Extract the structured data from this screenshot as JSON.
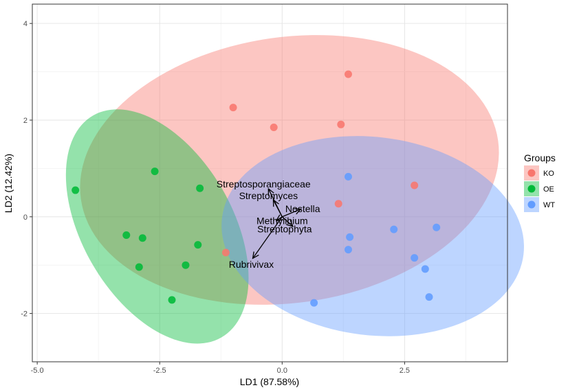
{
  "chart_data": {
    "type": "scatter",
    "xlabel": "LD1 (87.58%)",
    "ylabel": "LD2 (12.42%)",
    "xlim": [
      -5.1,
      4.6
    ],
    "ylim": [
      -3.0,
      4.4
    ],
    "x_ticks": [
      -5.0,
      -2.5,
      0.0,
      2.5
    ],
    "x_tick_labels": [
      "-5.0",
      "-2.5",
      "0.0",
      "2.5"
    ],
    "y_ticks": [
      4,
      2,
      0,
      -2
    ],
    "y_tick_labels": [
      "4",
      "2",
      "0",
      "-2"
    ],
    "grid": true,
    "legend": {
      "title": "Groups",
      "position": "right"
    },
    "series": [
      {
        "name": "KO",
        "color": "#F8766D",
        "points": [
          {
            "x": 1.35,
            "y": 2.95
          },
          {
            "x": -1.0,
            "y": 2.26
          },
          {
            "x": -0.17,
            "y": 1.85
          },
          {
            "x": 1.2,
            "y": 1.91
          },
          {
            "x": 2.7,
            "y": 0.65
          },
          {
            "x": 1.15,
            "y": 0.27
          },
          {
            "x": -1.15,
            "y": -0.74
          }
        ],
        "ellipse": {
          "cx": 0.15,
          "cy": 0.97,
          "rx": 4.3,
          "ry": 2.75,
          "angle_deg": 8
        }
      },
      {
        "name": "OE",
        "color": "#00BA38",
        "points": [
          {
            "x": -4.22,
            "y": 0.55
          },
          {
            "x": -2.6,
            "y": 0.94
          },
          {
            "x": -1.68,
            "y": 0.59
          },
          {
            "x": -3.18,
            "y": -0.38
          },
          {
            "x": -2.85,
            "y": -0.44
          },
          {
            "x": -1.72,
            "y": -0.58
          },
          {
            "x": -2.92,
            "y": -1.04
          },
          {
            "x": -1.97,
            "y": -1.0
          },
          {
            "x": -2.25,
            "y": -1.72
          }
        ],
        "ellipse": {
          "cx": -2.55,
          "cy": -0.2,
          "rx": 2.62,
          "ry": 1.55,
          "angle_deg": -60
        }
      },
      {
        "name": "WT",
        "color": "#619CFF",
        "points": [
          {
            "x": 1.35,
            "y": 0.83
          },
          {
            "x": 3.15,
            "y": -0.22
          },
          {
            "x": 2.28,
            "y": -0.26
          },
          {
            "x": 1.38,
            "y": -0.42
          },
          {
            "x": 1.35,
            "y": -0.68
          },
          {
            "x": 2.7,
            "y": -0.85
          },
          {
            "x": 2.92,
            "y": -1.08
          },
          {
            "x": 3.0,
            "y": -1.66
          },
          {
            "x": 0.65,
            "y": -1.78
          }
        ],
        "ellipse": {
          "cx": 1.85,
          "cy": -0.4,
          "rx": 3.1,
          "ry": 2.05,
          "angle_deg": -7
        }
      }
    ],
    "arrows": [
      {
        "label": "Streptosporangiaceae",
        "x": -0.28,
        "y": 0.58,
        "label_x": -0.38,
        "label_y": 0.68
      },
      {
        "label": "Streptomyces",
        "x": -0.18,
        "y": 0.35,
        "label_x": -0.28,
        "label_y": 0.44
      },
      {
        "label": "Nostella",
        "x": 0.38,
        "y": 0.16,
        "label_x": 0.42,
        "label_y": 0.17
      },
      {
        "label": "Methylibium",
        "x": -0.12,
        "y": -0.08,
        "label_x": 0.0,
        "label_y": -0.08
      },
      {
        "label": "Streptophyta",
        "x": 0.22,
        "y": -0.2,
        "label_x": 0.05,
        "label_y": -0.25
      },
      {
        "label": "Rubrivivax",
        "x": -0.6,
        "y": -0.86,
        "label_x": -0.63,
        "label_y": -0.98
      }
    ]
  }
}
